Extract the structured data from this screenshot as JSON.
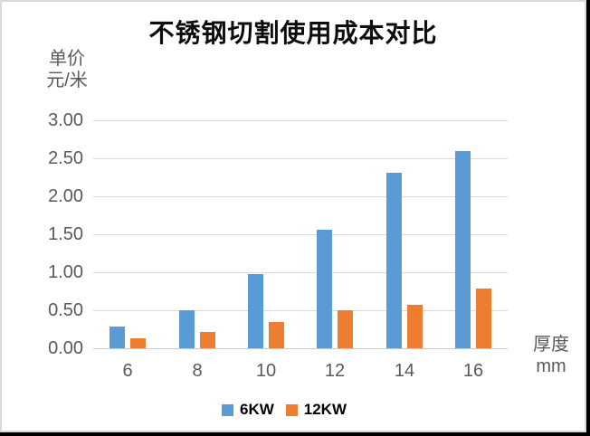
{
  "chart_data": {
    "type": "bar",
    "title": "不锈钢切割使用成本对比",
    "y_axis": {
      "unit_lines": [
        "单价",
        "元/米"
      ],
      "min": 0,
      "max": 3,
      "tick_step": 0.5,
      "tick_labels": [
        "3.00",
        "2.50",
        "2.00",
        "1.50",
        "1.00",
        "0.50",
        "0.00"
      ]
    },
    "x_axis": {
      "unit_lines": [
        "厚度",
        "mm"
      ]
    },
    "categories": [
      "6",
      "8",
      "10",
      "12",
      "14",
      "16"
    ],
    "series": [
      {
        "name": "6KW",
        "color": "#5B9BD5",
        "values": [
          0.28,
          0.5,
          0.98,
          1.56,
          2.31,
          2.6
        ]
      },
      {
        "name": "12KW",
        "color": "#ED7D31",
        "values": [
          0.13,
          0.21,
          0.34,
          0.5,
          0.57,
          0.78
        ]
      }
    ],
    "legend": {
      "position": "bottom",
      "entries": [
        "6KW",
        "12KW"
      ]
    },
    "grid": true
  },
  "colors": {
    "grid": "#D9D9D9",
    "axis_text": "#595959",
    "title_text": "#0D0D0D"
  }
}
